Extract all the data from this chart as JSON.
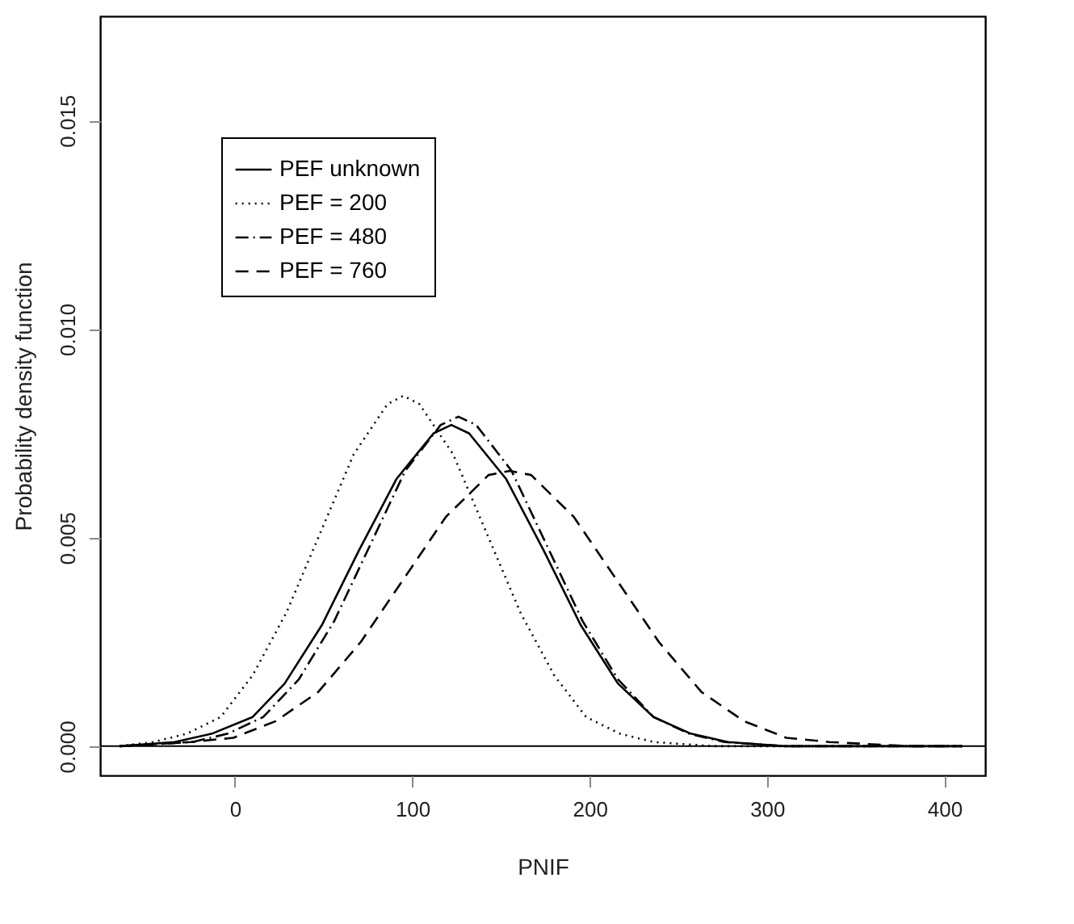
{
  "chart_data": {
    "type": "line",
    "xlabel": "PNIF",
    "ylabel": "Probability density function",
    "xlim": [
      -76,
      423
    ],
    "xticks": [
      0,
      100,
      200,
      300,
      400
    ],
    "ylim": [
      -0.0007,
      0.0175
    ],
    "yticks": [
      {
        "value": 0,
        "label": "0.000"
      },
      {
        "value": 0.005,
        "label": "0.005"
      },
      {
        "value": 0.01,
        "label": "0.010"
      },
      {
        "value": 0.015,
        "label": "0.015"
      }
    ],
    "grid": false,
    "legend": "top left",
    "marker": "none",
    "ref_lines": [
      {
        "axis": "y",
        "value": 0,
        "color": "#000000",
        "line_style": "solid"
      }
    ],
    "series": [
      {
        "name": "PEF unknown",
        "color": "#000000",
        "line_style": "solid",
        "x": [
          -65,
          -34,
          -13,
          10,
          28,
          49,
          70,
          91,
          112,
          122,
          132,
          153,
          174,
          195,
          216,
          236,
          257,
          278,
          310,
          410
        ],
        "values": [
          0,
          0.0001,
          0.0003,
          0.0007,
          0.0015,
          0.0029,
          0.0047,
          0.0064,
          0.0075,
          0.0077,
          0.0075,
          0.0064,
          0.0047,
          0.0029,
          0.0015,
          0.0007,
          0.0003,
          0.0001,
          0,
          0
        ]
      },
      {
        "name": "PEF = 200",
        "color": "#000000",
        "line_style": "dotted",
        "x": [
          -65,
          -46,
          -27,
          -8,
          10,
          29,
          48,
          67,
          86,
          95,
          104,
          123,
          142,
          161,
          180,
          198,
          217,
          236,
          270,
          410
        ],
        "values": [
          0,
          0.0001,
          0.0003,
          0.0007,
          0.0017,
          0.0032,
          0.0051,
          0.007,
          0.0082,
          0.0084,
          0.0082,
          0.007,
          0.0051,
          0.0032,
          0.0017,
          0.0007,
          0.0003,
          0.0001,
          0,
          0
        ]
      },
      {
        "name": "PEF = 480",
        "color": "#000000",
        "line_style": "dashdot",
        "x": [
          -65,
          -24,
          -4,
          16,
          36,
          56,
          76,
          96,
          116,
          126,
          136,
          156,
          176,
          196,
          216,
          236,
          256,
          276,
          310,
          410
        ],
        "values": [
          0,
          0.0001,
          0.0003,
          0.0007,
          0.0016,
          0.003,
          0.0048,
          0.0066,
          0.0077,
          0.0079,
          0.0077,
          0.0066,
          0.0048,
          0.003,
          0.0016,
          0.0007,
          0.0003,
          0.0001,
          0,
          0
        ]
      },
      {
        "name": "PEF = 760",
        "color": "#000000",
        "line_style": "dashed",
        "x": [
          -65,
          -25,
          -1,
          23,
          47,
          71,
          95,
          119,
          143,
          155,
          167,
          191,
          215,
          239,
          263,
          287,
          311,
          335,
          380,
          410
        ],
        "values": [
          0,
          0.0001,
          0.0002,
          0.0006,
          0.0013,
          0.0025,
          0.004,
          0.0055,
          0.0065,
          0.0066,
          0.0065,
          0.0055,
          0.004,
          0.0025,
          0.0013,
          0.0006,
          0.0002,
          0.0001,
          0,
          0
        ]
      }
    ]
  }
}
